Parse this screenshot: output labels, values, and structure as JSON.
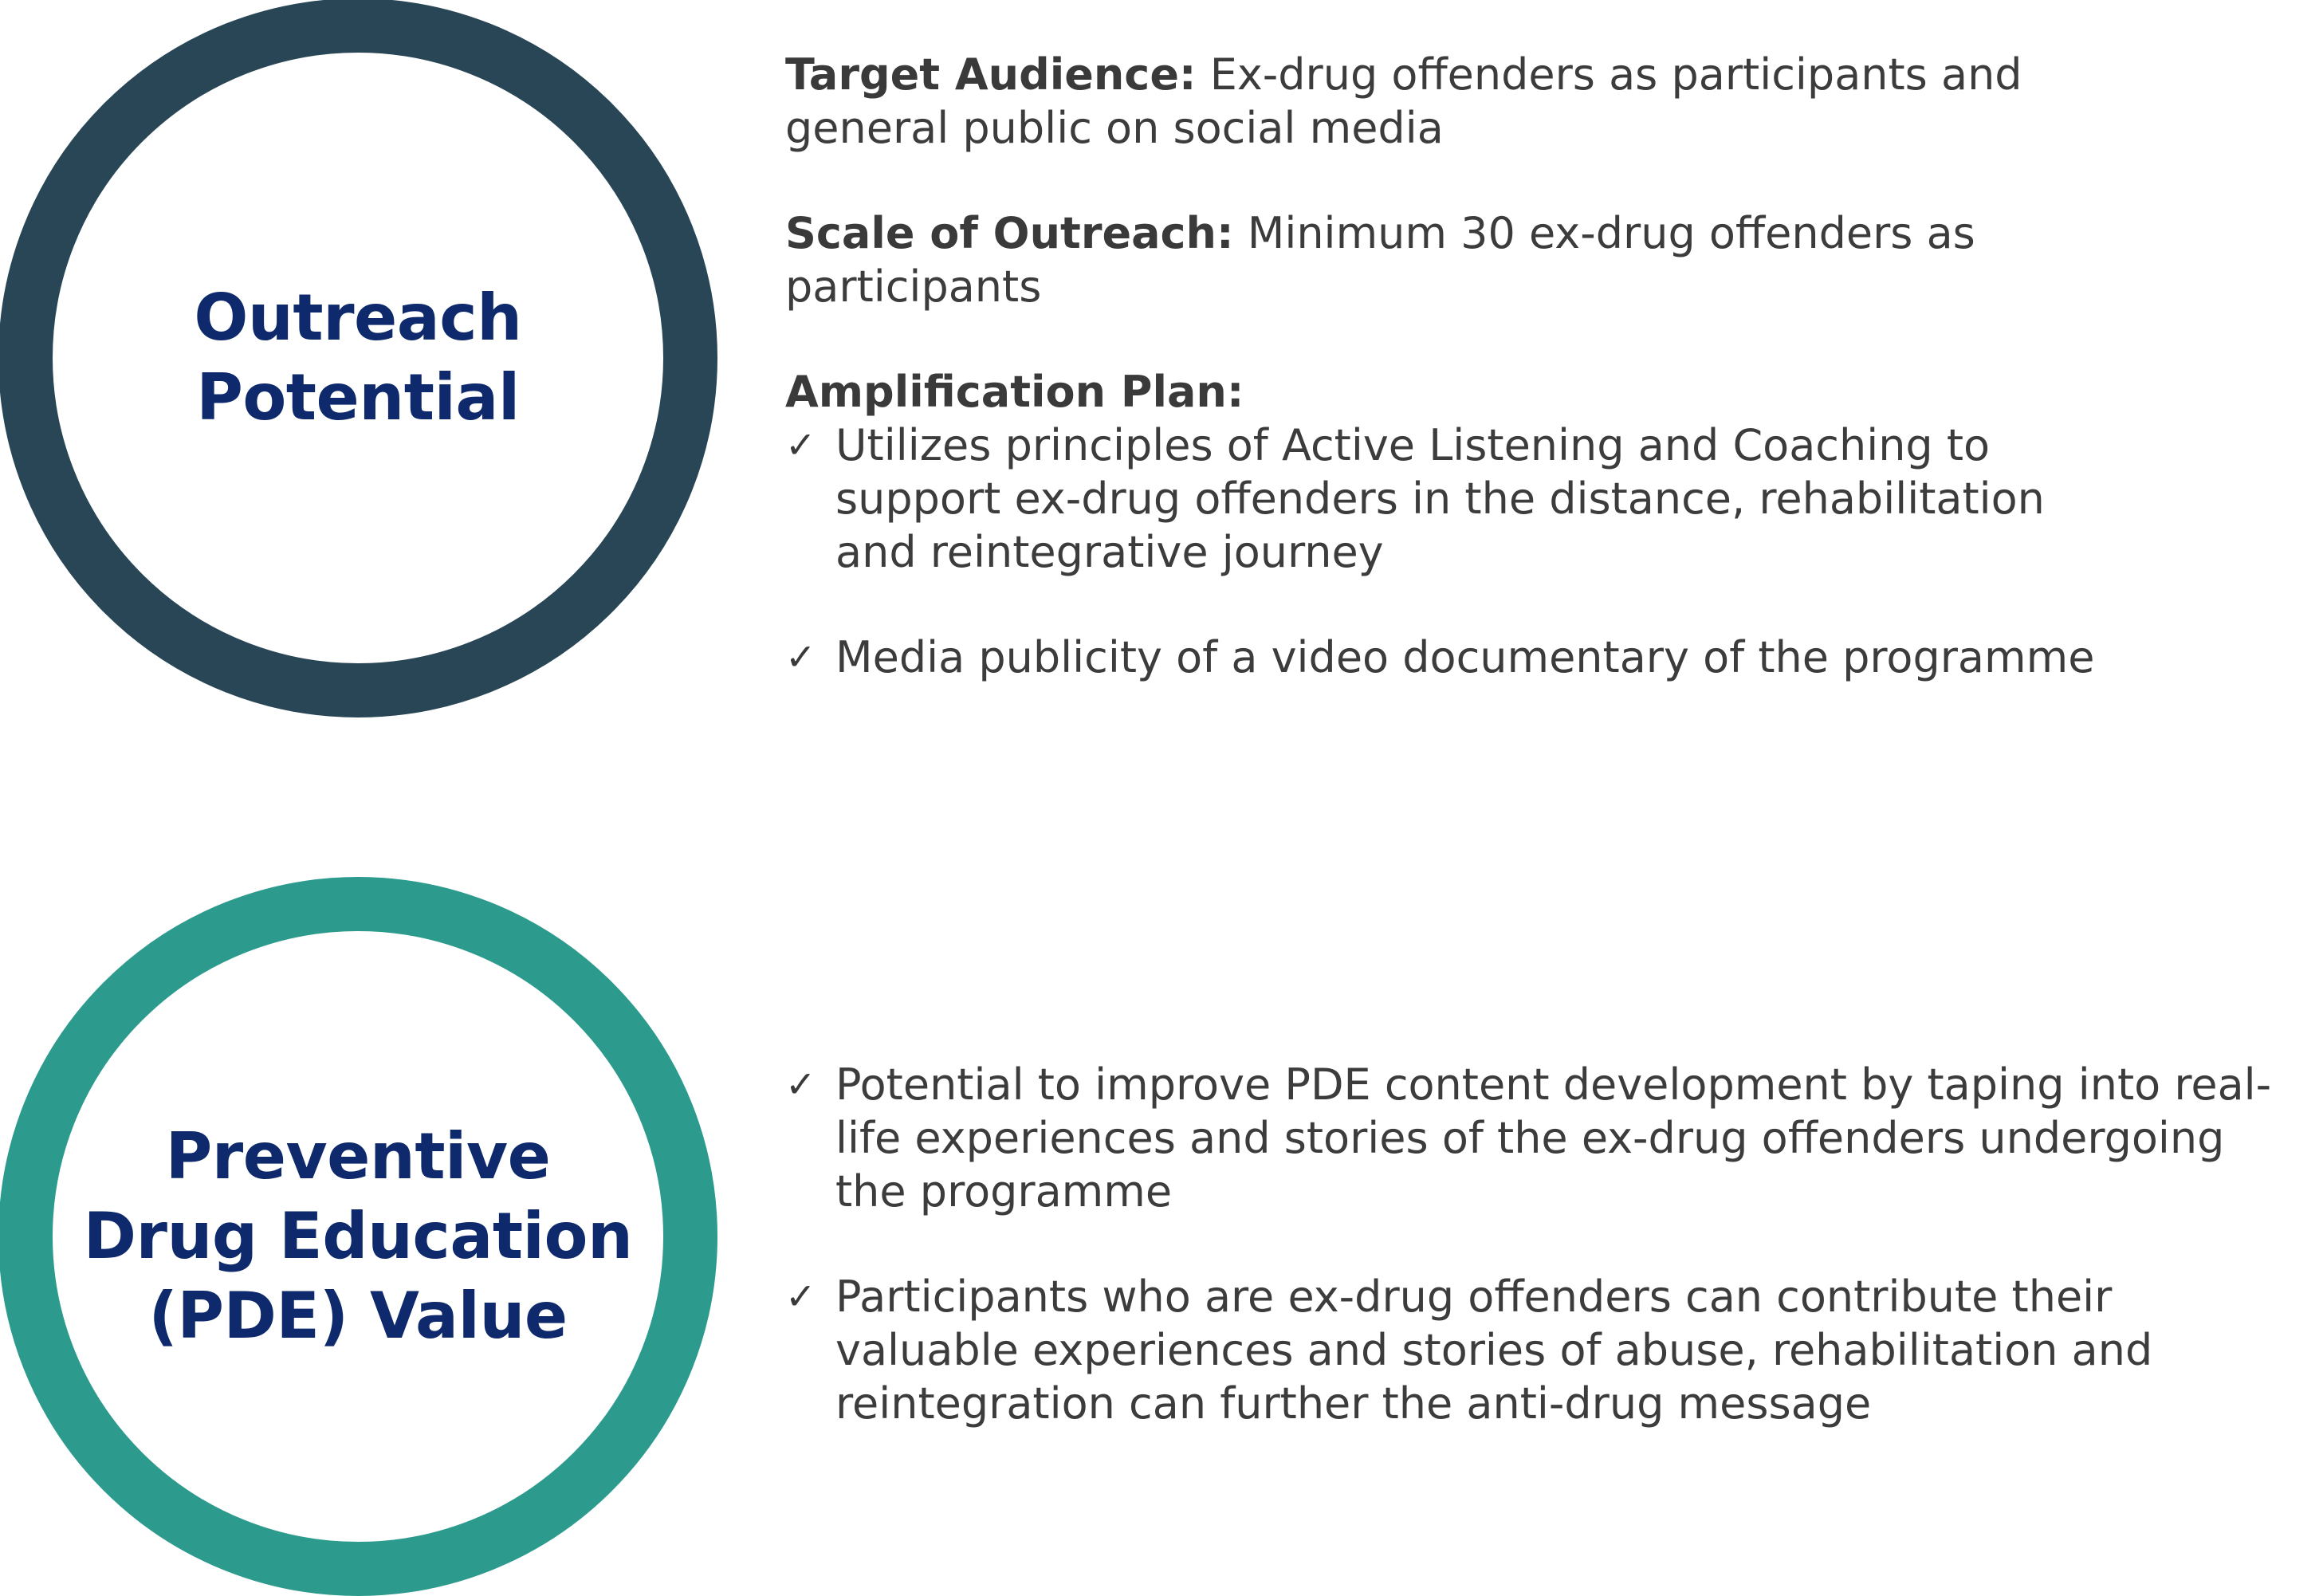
{
  "outreach": {
    "circle_title": [
      "Outreach",
      "Potential"
    ],
    "target_audience_label": "Target Audience:",
    "target_audience_text_1": " Ex-drug offenders as participants and",
    "target_audience_text_2": "general public on social media",
    "scale_label": "Scale of Outreach:",
    "scale_text_1": "  Minimum 30 ex-drug offenders as",
    "scale_text_2": "participants",
    "amplification_label": "Amplification Plan:",
    "amplification_items": [
      [
        "Utilizes principles of Active Listening and Coaching to",
        "support ex-drug offenders in the distance, rehabilitation",
        "and reintegrative journey"
      ],
      [
        "Media publicity of a video documentary of the programme"
      ]
    ]
  },
  "pde": {
    "circle_title": [
      "Preventive",
      "Drug Education",
      "(PDE) Value"
    ],
    "items": [
      [
        "Potential to improve PDE content development by taping into real-",
        "life experiences and stories of the ex-drug offenders undergoing",
        "the programme"
      ],
      [
        "Participants who are ex-drug offenders can contribute their",
        "valuable experiences and stories of abuse, rehabilitation and",
        "reintegration can further the anti-drug message"
      ]
    ]
  },
  "icons": {
    "check": "check-mark-icon",
    "check_glyph": "✓"
  },
  "colors": {
    "outreach_ring": "#284655",
    "pde_ring": "#2c9b8d",
    "title_text": "#0e2a6c",
    "body_text": "#3c3c3c"
  }
}
